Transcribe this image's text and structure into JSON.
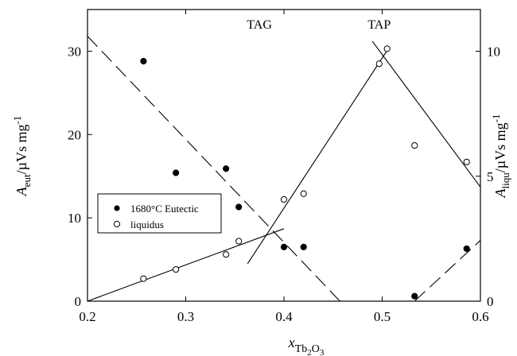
{
  "chart_data": {
    "type": "scatter",
    "x": {
      "label_base": "x",
      "label_sub_base": "Tb",
      "label_sub_1": "2",
      "label_sub_mid": "O",
      "label_sub_2": "3",
      "range": [
        0.2,
        0.6
      ],
      "ticks": [
        0.2,
        0.3,
        0.4,
        0.5,
        0.6
      ],
      "tick_labels": [
        "0.2",
        "0.3",
        "0.4",
        "0.5",
        "0.6"
      ]
    },
    "y_left": {
      "label_base": "A",
      "label_sub": "eut",
      "label_unit": "/µVs mg",
      "label_sup": "-1",
      "range": [
        0,
        35
      ],
      "ticks": [
        0,
        10,
        20,
        30
      ],
      "tick_labels": [
        "0",
        "10",
        "20",
        "30"
      ]
    },
    "y_right": {
      "label_base": "A",
      "label_sub": "liqu",
      "label_unit": "/µVs mg",
      "label_sup": "-1",
      "range": [
        0,
        11.67
      ],
      "ticks": [
        0,
        5,
        10
      ],
      "tick_labels": [
        "0",
        "5",
        "10"
      ]
    },
    "annotations": [
      {
        "text": "TAG",
        "x": 0.375,
        "y_left": 32.7
      },
      {
        "text": "TAP",
        "x": 0.497,
        "y_left": 32.7
      }
    ],
    "legend": {
      "position": "center-left",
      "entries": [
        {
          "label": "1680°C Eutectic",
          "marker": "filled-circle"
        },
        {
          "label": "liquidus",
          "marker": "open-circle"
        }
      ]
    },
    "series": [
      {
        "name": "1680°C Eutectic",
        "axis": "left",
        "marker": "filled-circle",
        "points": [
          [
            0.257,
            28.8
          ],
          [
            0.29,
            15.4
          ],
          [
            0.341,
            15.9
          ],
          [
            0.354,
            11.3
          ],
          [
            0.4,
            6.5
          ],
          [
            0.42,
            6.5
          ],
          [
            0.533,
            0.6
          ],
          [
            0.586,
            6.3
          ]
        ]
      },
      {
        "name": "liquidus",
        "axis": "right",
        "marker": "open-circle",
        "points": [
          [
            0.257,
            0.9
          ],
          [
            0.29,
            1.27
          ],
          [
            0.341,
            1.87
          ],
          [
            0.354,
            2.4
          ],
          [
            0.4,
            4.07
          ],
          [
            0.42,
            4.3
          ],
          [
            0.497,
            9.5
          ],
          [
            0.505,
            10.1
          ],
          [
            0.533,
            6.23
          ],
          [
            0.586,
            5.57
          ]
        ]
      }
    ],
    "fit_lines": [
      {
        "style": "dashed",
        "axis": "left",
        "from": [
          0.2,
          31.8
        ],
        "to": [
          0.457,
          0
        ]
      },
      {
        "style": "dashed",
        "axis": "left",
        "from": [
          0.533,
          0
        ],
        "to": [
          0.6,
          7.3
        ]
      },
      {
        "style": "solid",
        "axis": "right",
        "from": [
          0.2,
          0
        ],
        "to": [
          0.4,
          2.9
        ]
      },
      {
        "style": "solid",
        "axis": "right",
        "from": [
          0.363,
          1.5
        ],
        "to": [
          0.505,
          10.03
        ]
      },
      {
        "style": "solid",
        "axis": "right",
        "from": [
          0.49,
          10.4
        ],
        "to": [
          0.6,
          4.57
        ]
      }
    ]
  }
}
